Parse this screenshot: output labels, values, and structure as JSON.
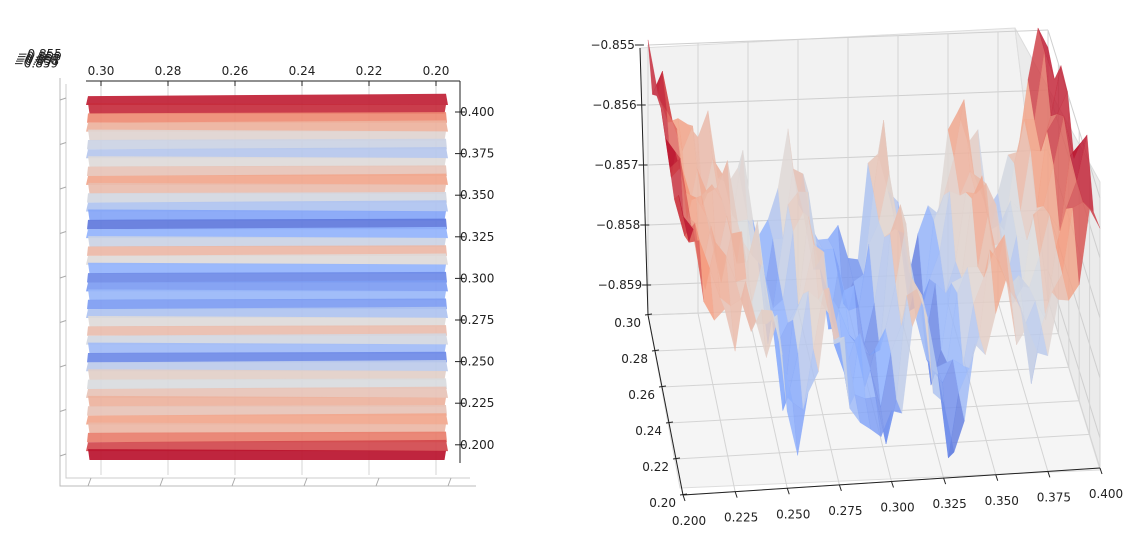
{
  "chart_data": [
    {
      "type": "surface",
      "view": "top-down",
      "colormap": "coolwarm",
      "colors": {
        "low": "#3b4cc0",
        "mid": "#dddddd",
        "high": "#b40426"
      },
      "x_ticks": [
        "0.30",
        "0.28",
        "0.26",
        "0.24",
        "0.22",
        "0.20"
      ],
      "y_ticks": [
        "0.400",
        "0.375",
        "0.350",
        "0.325",
        "0.300",
        "0.275",
        "0.250",
        "0.225",
        "0.200"
      ],
      "z_ticks": [
        "−0.855",
        "−0.856",
        "−0.857",
        "−0.858",
        "−0.859"
      ],
      "xlim": [
        0.2,
        0.3
      ],
      "ylim": [
        0.2,
        0.4
      ],
      "zlim": [
        -0.8595,
        -0.855
      ],
      "rows": [
        {
          "y": 0.4,
          "z": -0.8552
        },
        {
          "y": 0.395,
          "z": -0.8553
        },
        {
          "y": 0.39,
          "z": -0.856
        },
        {
          "y": 0.385,
          "z": -0.8565
        },
        {
          "y": 0.38,
          "z": -0.8571
        },
        {
          "y": 0.375,
          "z": -0.8575
        },
        {
          "y": 0.37,
          "z": -0.8578
        },
        {
          "y": 0.365,
          "z": -0.8572
        },
        {
          "y": 0.36,
          "z": -0.8568
        },
        {
          "y": 0.355,
          "z": -0.8563
        },
        {
          "y": 0.35,
          "z": -0.8567
        },
        {
          "y": 0.345,
          "z": -0.8574
        },
        {
          "y": 0.34,
          "z": -0.8579
        },
        {
          "y": 0.335,
          "z": -0.8585
        },
        {
          "y": 0.33,
          "z": -0.859
        },
        {
          "y": 0.325,
          "z": -0.8583
        },
        {
          "y": 0.32,
          "z": -0.8575
        },
        {
          "y": 0.315,
          "z": -0.8566
        },
        {
          "y": 0.31,
          "z": -0.8572
        },
        {
          "y": 0.305,
          "z": -0.8583
        },
        {
          "y": 0.3,
          "z": -0.8588
        },
        {
          "y": 0.295,
          "z": -0.8586
        },
        {
          "y": 0.29,
          "z": -0.8582
        },
        {
          "y": 0.285,
          "z": -0.8586
        },
        {
          "y": 0.28,
          "z": -0.8579
        },
        {
          "y": 0.275,
          "z": -0.8572
        },
        {
          "y": 0.27,
          "z": -0.8567
        },
        {
          "y": 0.265,
          "z": -0.8574
        },
        {
          "y": 0.26,
          "z": -0.8581
        },
        {
          "y": 0.255,
          "z": -0.8588
        },
        {
          "y": 0.25,
          "z": -0.8577
        },
        {
          "y": 0.245,
          "z": -0.857
        },
        {
          "y": 0.24,
          "z": -0.8573
        },
        {
          "y": 0.235,
          "z": -0.8568
        },
        {
          "y": 0.23,
          "z": -0.8565
        },
        {
          "y": 0.225,
          "z": -0.8568
        },
        {
          "y": 0.22,
          "z": -0.8563
        },
        {
          "y": 0.215,
          "z": -0.8566
        },
        {
          "y": 0.21,
          "z": -0.8559
        },
        {
          "y": 0.205,
          "z": -0.8555
        },
        {
          "y": 0.2,
          "z": -0.8551
        }
      ]
    },
    {
      "type": "surface",
      "view": "perspective",
      "colormap": "coolwarm",
      "colors": {
        "low": "#3b4cc0",
        "mid": "#dddddd",
        "high": "#b40426"
      },
      "z_ticks": [
        "−0.855",
        "−0.856",
        "−0.857",
        "−0.858",
        "−0.859"
      ],
      "x_ticks": [
        "0.200",
        "0.225",
        "0.250",
        "0.275",
        "0.300",
        "0.325",
        "0.350",
        "0.375",
        "0.400"
      ],
      "y_ticks": [
        "0.30",
        "0.28",
        "0.26",
        "0.24",
        "0.22",
        "0.20"
      ],
      "xlim": [
        0.2,
        0.4
      ],
      "ylim": [
        0.2,
        0.3
      ],
      "zlim": [
        -0.8595,
        -0.855
      ],
      "grid": true
    }
  ]
}
